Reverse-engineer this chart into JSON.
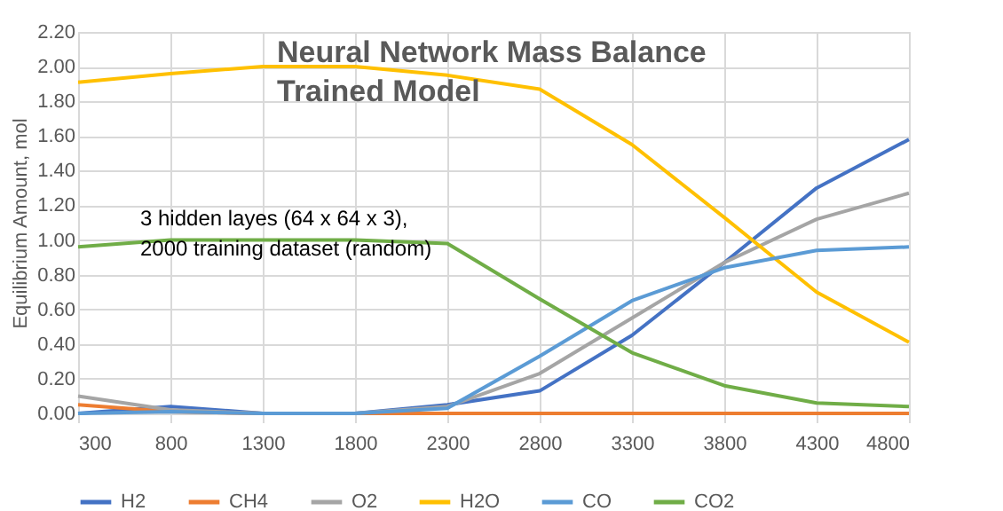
{
  "chart_data": {
    "type": "line",
    "title": [
      "Neural Network Mass Balance",
      "Trained Model"
    ],
    "ylabel": "Equilibrium Amount, mol",
    "categories": [
      "300",
      "800",
      "1300",
      "1800",
      "2300",
      "2800",
      "3300",
      "3800",
      "4300",
      "4800"
    ],
    "series": [
      {
        "name": "H2",
        "color": "#4472c4",
        "values": [
          0.0,
          0.04,
          0.0,
          0.0,
          0.05,
          0.13,
          0.45,
          0.87,
          1.3,
          1.58
        ]
      },
      {
        "name": "CH4",
        "color": "#ed7d31",
        "values": [
          0.05,
          0.01,
          0.0,
          0.0,
          0.0,
          0.0,
          0.0,
          0.0,
          0.0,
          0.0
        ]
      },
      {
        "name": "O2",
        "color": "#a5a5a5",
        "values": [
          0.1,
          0.02,
          0.0,
          0.0,
          0.04,
          0.23,
          0.55,
          0.87,
          1.12,
          1.27
        ]
      },
      {
        "name": "H2O",
        "color": "#ffc000",
        "values": [
          1.91,
          1.96,
          2.0,
          2.0,
          1.95,
          1.87,
          1.55,
          1.13,
          0.7,
          0.41
        ]
      },
      {
        "name": "CO",
        "color": "#5b9bd5",
        "values": [
          0.0,
          0.01,
          0.0,
          0.0,
          0.03,
          0.33,
          0.65,
          0.84,
          0.94,
          0.96
        ]
      },
      {
        "name": "CO2",
        "color": "#70ad47",
        "values": [
          0.96,
          1.0,
          1.0,
          1.0,
          0.98,
          0.66,
          0.35,
          0.16,
          0.06,
          0.04
        ]
      }
    ],
    "ylim": [
      0,
      2.2
    ],
    "yticks": [
      {
        "value": 0,
        "label": "0.00"
      },
      {
        "value": 0.2,
        "label": "0.20"
      },
      {
        "value": 0.4,
        "label": "0.40"
      },
      {
        "value": 0.6,
        "label": "0.60"
      },
      {
        "value": 0.8,
        "label": "0.80"
      },
      {
        "value": 1.0,
        "label": "1.00"
      },
      {
        "value": 1.2,
        "label": "1.20"
      },
      {
        "value": 1.4,
        "label": "1.40"
      },
      {
        "value": 1.6,
        "label": "1.60"
      },
      {
        "value": 1.8,
        "label": "1.80"
      },
      {
        "value": 2.0,
        "label": "2.00"
      },
      {
        "value": 2.2,
        "label": "2.20"
      }
    ],
    "annotations": [
      "3 hidden layes (64 x 64 x 3),",
      "2000 training dataset (random)"
    ],
    "grid": true,
    "legend": "bottom",
    "marker": "none",
    "line_style": "solid"
  }
}
